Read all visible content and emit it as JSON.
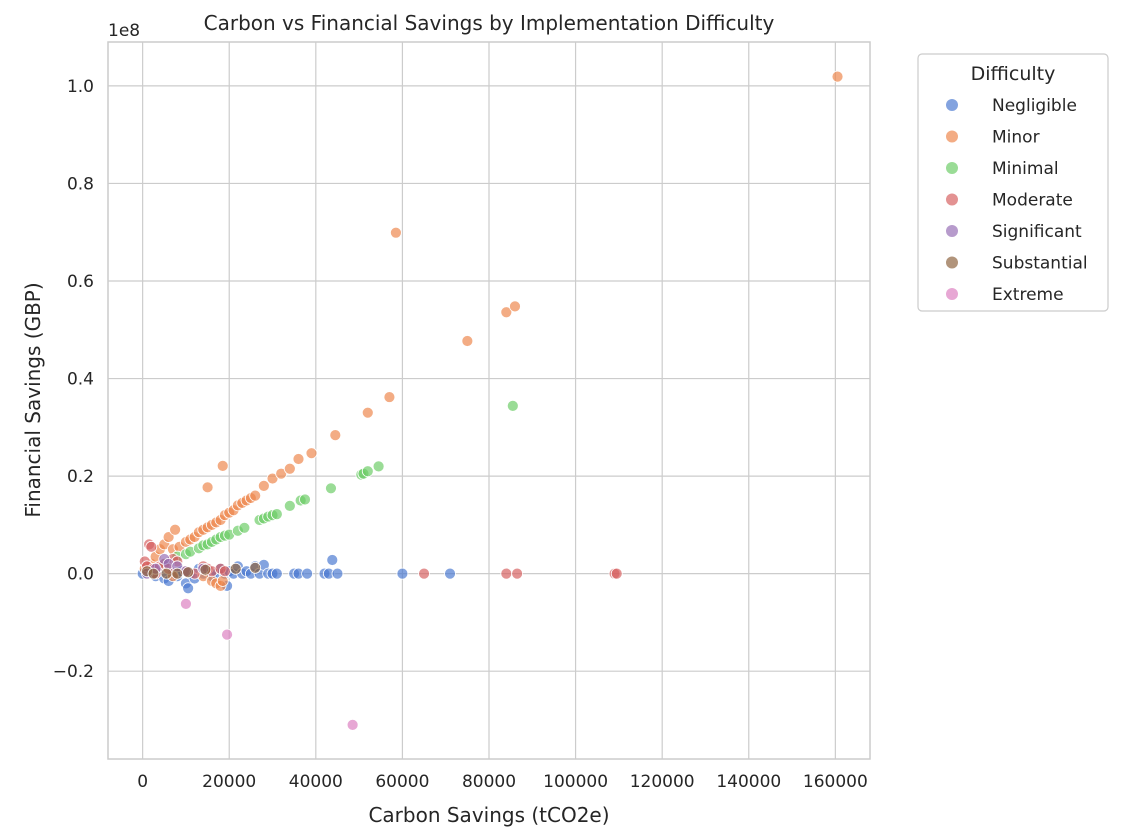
{
  "chart_data": {
    "type": "scatter",
    "title": "Carbon vs Financial Savings by Implementation Difficulty",
    "xlabel": "Carbon Savings (tCO2e)",
    "ylabel": "Financial Savings (GBP)",
    "y_offset_text": "1e8",
    "xlim": [
      -8000,
      168000
    ],
    "ylim": [
      -0.38,
      1.09
    ],
    "x_ticks": [
      0,
      20000,
      40000,
      60000,
      80000,
      100000,
      120000,
      140000,
      160000
    ],
    "x_tick_labels": [
      "0",
      "20000",
      "40000",
      "60000",
      "80000",
      "100000",
      "120000",
      "140000",
      "160000"
    ],
    "y_ticks": [
      -0.2,
      0.0,
      0.2,
      0.4,
      0.6,
      0.8,
      1.0
    ],
    "y_tick_labels": [
      "−0.2",
      "0.0",
      "0.2",
      "0.4",
      "0.6",
      "0.8",
      "1.0"
    ],
    "grid": true,
    "legend": {
      "title": "Difficulty",
      "placement": "outside-top-right"
    },
    "series": [
      {
        "name": "Negligible",
        "color": "#4878d0",
        "points": [
          [
            0,
            0.0
          ],
          [
            1500,
            0.005
          ],
          [
            3000,
            -0.005
          ],
          [
            4000,
            0.01
          ],
          [
            5000,
            -0.01
          ],
          [
            6000,
            -0.015
          ],
          [
            7000,
            0.0
          ],
          [
            8000,
            -0.005
          ],
          [
            9000,
            0.005
          ],
          [
            10000,
            -0.02
          ],
          [
            10500,
            -0.03
          ],
          [
            11000,
            0.0
          ],
          [
            12000,
            -0.01
          ],
          [
            13000,
            0.01
          ],
          [
            14000,
            0.0
          ],
          [
            15000,
            0.005
          ],
          [
            16000,
            -0.005
          ],
          [
            17000,
            0.0
          ],
          [
            18000,
            0.01
          ],
          [
            19000,
            0.0
          ],
          [
            19500,
            -0.025
          ],
          [
            20000,
            0.005
          ],
          [
            21000,
            0.0
          ],
          [
            22000,
            0.015
          ],
          [
            23000,
            0.0
          ],
          [
            24000,
            0.005
          ],
          [
            25000,
            0.0
          ],
          [
            26000,
            0.015
          ],
          [
            27000,
            0.0
          ],
          [
            28000,
            0.018
          ],
          [
            29000,
            0.0
          ],
          [
            30000,
            0.0
          ],
          [
            31000,
            0.0
          ],
          [
            35000,
            0.0
          ],
          [
            36000,
            0.0
          ],
          [
            38000,
            0.0
          ],
          [
            42000,
            0.0
          ],
          [
            43000,
            0.0
          ],
          [
            43800,
            0.028
          ],
          [
            45000,
            0.0
          ],
          [
            60000,
            0.0
          ],
          [
            71000,
            0.0
          ]
        ]
      },
      {
        "name": "Minor",
        "color": "#ee854a",
        "points": [
          [
            500,
            0.01
          ],
          [
            2000,
            0.02
          ],
          [
            3000,
            0.035
          ],
          [
            4000,
            0.05
          ],
          [
            5000,
            0.06
          ],
          [
            6000,
            0.075
          ],
          [
            7500,
            0.09
          ],
          [
            7000,
            0.05
          ],
          [
            8500,
            0.055
          ],
          [
            10000,
            0.065
          ],
          [
            11000,
            0.07
          ],
          [
            12000,
            0.075
          ],
          [
            13000,
            0.085
          ],
          [
            14000,
            0.09
          ],
          [
            15000,
            0.095
          ],
          [
            15000,
            0.177
          ],
          [
            16000,
            0.1
          ],
          [
            17000,
            0.105
          ],
          [
            18000,
            0.11
          ],
          [
            18500,
            0.221
          ],
          [
            19000,
            0.12
          ],
          [
            20000,
            0.125
          ],
          [
            21000,
            0.13
          ],
          [
            22000,
            0.14
          ],
          [
            23000,
            0.145
          ],
          [
            24000,
            0.15
          ],
          [
            25000,
            0.155
          ],
          [
            26000,
            0.16
          ],
          [
            28000,
            0.18
          ],
          [
            30000,
            0.195
          ],
          [
            32000,
            0.205
          ],
          [
            34000,
            0.215
          ],
          [
            36000,
            0.235
          ],
          [
            39000,
            0.247
          ],
          [
            44500,
            0.284
          ],
          [
            52000,
            0.33
          ],
          [
            57000,
            0.362
          ],
          [
            75000,
            0.477
          ],
          [
            58500,
            0.699
          ],
          [
            84000,
            0.536
          ],
          [
            86000,
            0.548
          ],
          [
            160500,
            1.019
          ],
          [
            14000,
            -0.005
          ],
          [
            16000,
            -0.015
          ],
          [
            17000,
            -0.02
          ],
          [
            18000,
            -0.025
          ],
          [
            18500,
            -0.015
          ],
          [
            7000,
            -0.005
          ]
        ]
      },
      {
        "name": "Minimal",
        "color": "#6acc64",
        "points": [
          [
            5000,
            0.02
          ],
          [
            8000,
            0.035
          ],
          [
            10000,
            0.04
          ],
          [
            11000,
            0.045
          ],
          [
            13000,
            0.052
          ],
          [
            14000,
            0.058
          ],
          [
            15000,
            0.06
          ],
          [
            16000,
            0.065
          ],
          [
            17000,
            0.07
          ],
          [
            18000,
            0.075
          ],
          [
            19000,
            0.078
          ],
          [
            20000,
            0.08
          ],
          [
            22000,
            0.088
          ],
          [
            23500,
            0.094
          ],
          [
            27000,
            0.11
          ],
          [
            28000,
            0.113
          ],
          [
            29000,
            0.117
          ],
          [
            30000,
            0.12
          ],
          [
            31000,
            0.122
          ],
          [
            34000,
            0.139
          ],
          [
            36500,
            0.15
          ],
          [
            37500,
            0.152
          ],
          [
            43500,
            0.175
          ],
          [
            50500,
            0.203
          ],
          [
            51000,
            0.205
          ],
          [
            52000,
            0.21
          ],
          [
            54500,
            0.22
          ],
          [
            85500,
            0.344
          ]
        ]
      },
      {
        "name": "Moderate",
        "color": "#d65f5f",
        "points": [
          [
            500,
            0.025
          ],
          [
            1000,
            0.015
          ],
          [
            1500,
            0.06
          ],
          [
            2000,
            0.055
          ],
          [
            2500,
            0.01
          ],
          [
            3000,
            0.0
          ],
          [
            4000,
            0.015
          ],
          [
            5000,
            0.02
          ],
          [
            6000,
            0.01
          ],
          [
            7000,
            0.03
          ],
          [
            8000,
            0.025
          ],
          [
            10000,
            0.005
          ],
          [
            12000,
            0.0
          ],
          [
            14000,
            0.015
          ],
          [
            15000,
            0.01
          ],
          [
            16000,
            0.005
          ],
          [
            18000,
            0.01
          ],
          [
            19000,
            0.005
          ],
          [
            65000,
            0.0
          ],
          [
            84000,
            0.0
          ],
          [
            86500,
            0.0
          ],
          [
            109000,
            0.0
          ],
          [
            109500,
            0.0
          ]
        ]
      },
      {
        "name": "Significant",
        "color": "#956cb4",
        "points": [
          [
            1000,
            0.0
          ],
          [
            3000,
            0.01
          ],
          [
            5000,
            0.03
          ],
          [
            6000,
            0.02
          ],
          [
            8000,
            0.015
          ],
          [
            10000,
            0.005
          ],
          [
            14000,
            0.01
          ]
        ]
      },
      {
        "name": "Substantial",
        "color": "#8c613c",
        "points": [
          [
            1000,
            0.005
          ],
          [
            2500,
            0.0
          ],
          [
            5500,
            0.0
          ],
          [
            8000,
            0.0
          ],
          [
            10500,
            0.003
          ],
          [
            14500,
            0.008
          ],
          [
            21500,
            0.01
          ],
          [
            26000,
            0.012
          ]
        ]
      },
      {
        "name": "Extreme",
        "color": "#dc7ec0",
        "points": [
          [
            10000,
            -0.062
          ],
          [
            19500,
            -0.125
          ],
          [
            48500,
            -0.31
          ]
        ]
      }
    ]
  }
}
